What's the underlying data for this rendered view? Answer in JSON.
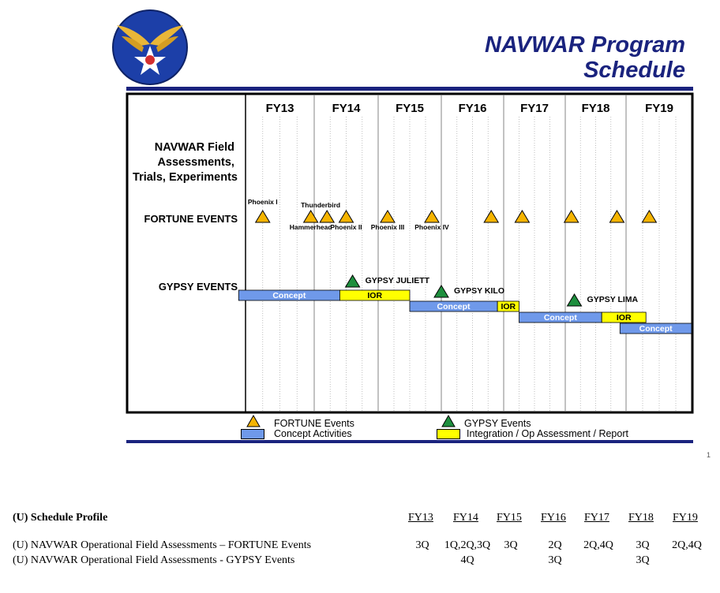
{
  "header": {
    "title_line1": "NAVWAR Program",
    "title_line2": "Schedule",
    "logo": "army-air-forces-wings-star-logo",
    "colors": {
      "title": "#1a237e",
      "rule": "#1a237e"
    }
  },
  "chart_data": {
    "type": "gantt",
    "fiscal_years": [
      "FY13",
      "FY14",
      "FY15",
      "FY16",
      "FY17",
      "FY18",
      "FY19"
    ],
    "row_labels": {
      "header": [
        "NAVWAR Field",
        "Assessments,",
        "Trials, Experiments"
      ],
      "fortune": "FORTUNE EVENTS",
      "gypsy": "GYPSY EVENTS"
    },
    "fortune_events": [
      {
        "t": 2013.25,
        "label": "Phoenix I",
        "label_pos": "above"
      },
      {
        "t": 2013.95,
        "label": "Hammerhead",
        "label_pos": "below"
      },
      {
        "t": 2014.2,
        "label": "",
        "label_pos": "none"
      },
      {
        "t": 2014.5,
        "label": "Phoenix II",
        "label_pos": "below"
      },
      {
        "t": 2015.15,
        "label": "Phoenix III",
        "label_pos": "below"
      },
      {
        "t": 2015.85,
        "label": "Phoenix IV",
        "label_pos": "below"
      },
      {
        "t": 2016.8,
        "label": "",
        "label_pos": "none"
      },
      {
        "t": 2017.3,
        "label": "",
        "label_pos": "none"
      },
      {
        "t": 2018.1,
        "label": "",
        "label_pos": "none"
      },
      {
        "t": 2018.85,
        "label": "",
        "label_pos": "none"
      },
      {
        "t": 2019.35,
        "label": "",
        "label_pos": "none"
      }
    ],
    "fortune_extra_labels": [
      {
        "t": 2014.1,
        "label": "Thunderbird"
      }
    ],
    "gypsy_events": [
      {
        "t": 2014.6,
        "label": "GYPSY JULIETT"
      },
      {
        "t": 2016.0,
        "label": "GYPSY KILO"
      },
      {
        "t": 2018.15,
        "label": "GYPSY LIMA"
      }
    ],
    "bars": [
      {
        "start": 2012.9,
        "end": 2014.4,
        "label": "Concept",
        "kind": "concept",
        "row": 0
      },
      {
        "start": 2014.4,
        "end": 2015.5,
        "label": "IOR",
        "kind": "ior",
        "row": 0
      },
      {
        "start": 2015.5,
        "end": 2016.9,
        "label": "Concept",
        "kind": "concept",
        "row": 1
      },
      {
        "start": 2016.9,
        "end": 2017.25,
        "label": "IOR",
        "kind": "ior",
        "row": 1
      },
      {
        "start": 2017.25,
        "end": 2018.6,
        "label": "Concept",
        "kind": "concept",
        "row": 2
      },
      {
        "start": 2018.6,
        "end": 2019.3,
        "label": "IOR",
        "kind": "ior",
        "row": 2
      },
      {
        "start": 2018.9,
        "end": 2020.15,
        "label": "Concept",
        "kind": "concept",
        "row": 3
      }
    ],
    "colors": {
      "fortune": "#f5b400",
      "gypsy": "#1e8f3e",
      "concept": "#6f99ea",
      "ior": "#ffff00"
    }
  },
  "legend": {
    "fortune": "FORTUNE Events",
    "gypsy": "GYPSY Events",
    "concept": "Concept Activities",
    "ior": "Integration / Op Assessment / Report"
  },
  "page_number": "1",
  "table": {
    "title": "(U) Schedule Profile",
    "years": [
      "FY13",
      "FY14",
      "FY15",
      "FY16",
      "FY17",
      "FY18",
      "FY19"
    ],
    "rows": [
      {
        "label": "(U) NAVWAR Operational Field Assessments – FORTUNE Events",
        "values": [
          "3Q",
          "1Q,2Q,3Q",
          "3Q",
          "2Q",
          "2Q,4Q",
          "3Q",
          "2Q,4Q"
        ]
      },
      {
        "label": "(U) NAVWAR Operational Field Assessments - GYPSY Events",
        "values": [
          "",
          "4Q",
          "",
          "3Q",
          "",
          "3Q",
          ""
        ]
      }
    ]
  }
}
